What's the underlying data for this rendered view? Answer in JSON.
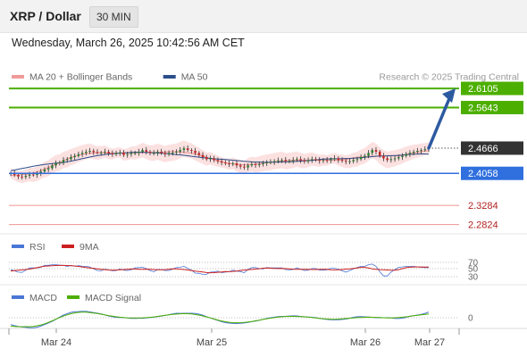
{
  "header": {
    "title": "XRP / Dollar",
    "timeframe": "30 MIN"
  },
  "datetime": "Wednesday, March 26, 2025 10:42:56 AM CET",
  "colors": {
    "background": "#ffffff",
    "header_bg": "#f2f2f2",
    "resistance": "#4caf00",
    "support": "#2f6fde",
    "target": "#f0a0a0",
    "arrow": "#2c5aa0",
    "candle_up": "#2e7d32",
    "candle_down": "#c62828",
    "ma20": "#f19a9a",
    "ma50": "#2c4e8a",
    "bollinger_fill": "#fbdcdc",
    "rsi": "#4a77d6",
    "rsi_ma": "#cc1f1f",
    "macd": "#4a77d6",
    "macd_signal": "#4caf00"
  },
  "chart_data": {
    "type": "line",
    "legend": [
      {
        "label": "MA 20 + Bollinger Bands",
        "color": "#f19a9a"
      },
      {
        "label": "MA 50",
        "color": "#2c4e8a"
      }
    ],
    "copyright": "Research © 2025 Trading Central",
    "ylim": [
      2.26,
      2.63
    ],
    "x_ticks": [
      "Mar 24",
      "Mar 25",
      "Mar 26",
      "Mar 27"
    ],
    "levels": [
      {
        "label": "2.6105",
        "value": 2.6105,
        "kind": "resistance"
      },
      {
        "label": "2.5643",
        "value": 2.5643,
        "kind": "resistance"
      },
      {
        "label": "2.4666",
        "value": 2.4666,
        "kind": "current"
      },
      {
        "label": "2.4058",
        "value": 2.4058,
        "kind": "support"
      },
      {
        "label": "2.3284",
        "value": 2.3284,
        "kind": "target"
      },
      {
        "label": "2.2824",
        "value": 2.2824,
        "kind": "target"
      }
    ],
    "price_series": [
      2.406,
      2.402,
      2.398,
      2.397,
      2.4,
      2.403,
      2.402,
      2.405,
      2.41,
      2.415,
      2.418,
      2.425,
      2.43,
      2.432,
      2.438,
      2.44,
      2.445,
      2.448,
      2.452,
      2.455,
      2.458,
      2.46,
      2.457,
      2.455,
      2.456,
      2.458,
      2.454,
      2.452,
      2.455,
      2.456,
      2.45,
      2.452,
      2.455,
      2.455,
      2.458,
      2.462,
      2.458,
      2.455,
      2.455,
      2.458,
      2.455,
      2.452,
      2.455,
      2.456,
      2.458,
      2.462,
      2.466,
      2.462,
      2.46,
      2.455,
      2.45,
      2.445,
      2.44,
      2.442,
      2.438,
      2.435,
      2.432,
      2.43,
      2.428,
      2.43,
      2.425,
      2.422,
      2.42,
      2.425,
      2.428,
      2.426,
      2.428,
      2.43,
      2.432,
      2.433,
      2.435,
      2.437,
      2.438,
      2.435,
      2.436,
      2.438,
      2.44,
      2.437,
      2.435,
      2.438,
      2.44,
      2.438,
      2.436,
      2.438,
      2.437,
      2.44,
      2.442,
      2.438,
      2.436,
      2.434,
      2.435,
      2.438,
      2.44,
      2.445,
      2.448,
      2.455,
      2.462,
      2.458,
      2.448,
      2.442,
      2.438,
      2.44,
      2.442,
      2.445,
      2.448,
      2.452,
      2.455,
      2.458,
      2.46,
      2.462,
      2.464,
      2.466
    ],
    "forecast_arrow": {
      "from": 2.4666,
      "to": 2.6105
    },
    "rsi": {
      "legend": [
        {
          "label": "RSI",
          "color": "#4a77d6"
        },
        {
          "label": "9MA",
          "color": "#cc1f1f"
        }
      ],
      "levels": [
        "70",
        "50",
        "30"
      ]
    },
    "macd": {
      "legend": [
        {
          "label": "MACD",
          "color": "#4a77d6"
        },
        {
          "label": "MACD Signal",
          "color": "#4caf00"
        }
      ],
      "levels": [
        "0"
      ]
    }
  }
}
